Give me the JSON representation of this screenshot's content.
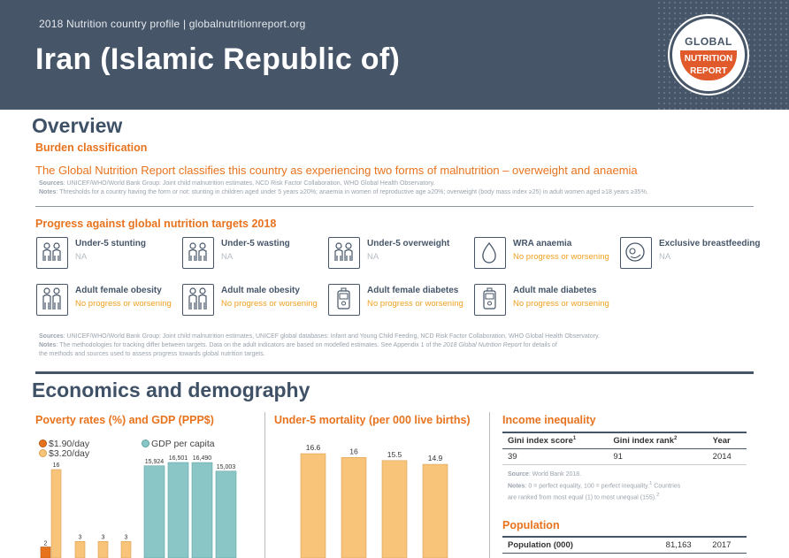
{
  "header": {
    "subtitle": "2018 Nutrition country profile  |  globalnutritionreport.org",
    "country": "Iran (Islamic Republic of)",
    "logo": {
      "line1": "GLOBAL",
      "line2": "NUTRITION",
      "line3": "REPORT"
    },
    "colors": {
      "navy": "#465568",
      "orange": "#e05a2b"
    }
  },
  "overview": {
    "title": "Overview",
    "burden_title": "Burden classification",
    "statement": "The Global Nutrition Report classifies this country as experiencing two forms of malnutrition – overweight and anaemia",
    "sources_label": "Sources",
    "sources_text": ": UNICEF/WHO/World Bank Group: Joint child malnutrition estimates, NCD Risk Factor Collaboration, WHO Global Health Observatory.",
    "notes_label": "Notes",
    "notes_text": ": Thresholds for a country having the form or not: stunting in children aged under 5 years ≥20%; anaemia in women of reproductive age ≥20%; overweight (body mass index ≥25) in adult women aged ≥18 years ≥35%."
  },
  "progress": {
    "title": "Progress against global nutrition targets 2018",
    "targets": [
      {
        "name": "Under-5 stunting",
        "status": "NA",
        "icon": "children-icon"
      },
      {
        "name": "Under-5 wasting",
        "status": "NA",
        "icon": "children-icon"
      },
      {
        "name": "Under-5 overweight",
        "status": "NA",
        "icon": "children-icon"
      },
      {
        "name": "WRA anaemia",
        "status": "No progress or worsening",
        "icon": "blood-drop-icon"
      },
      {
        "name": "Exclusive breastfeeding",
        "status": "NA",
        "icon": "breastfeeding-icon"
      },
      {
        "name": "Adult female obesity",
        "status": "No progress or worsening",
        "icon": "adults-icon"
      },
      {
        "name": "Adult male obesity",
        "status": "No progress or worsening",
        "icon": "adults-icon"
      },
      {
        "name": "Adult female diabetes",
        "status": "No progress or worsening",
        "icon": "glucose-meter-icon"
      },
      {
        "name": "Adult male diabetes",
        "status": "No progress or worsening",
        "icon": "glucose-meter-icon"
      }
    ],
    "sources_label": "Sources",
    "sources_text": ": UNICEF/WHO/World Bank Group: Joint child malnutrition estimates, UNICEF global databases: Infant and Young Child Feeding, NCD Risk Factor Collaboration, WHO Global Health Observatory.",
    "notes_label": "Notes",
    "notes_line1": ": The methodologies for tracking differ between targets. Data on the adult indicators are based on modelled estimates. See Appendix 1 of the ",
    "notes_italic": "2018 Global Nutrition Report",
    "notes_line1_end": " for details of",
    "notes_line2": "the methods and sources used to assess progress towards global nutrition targets.",
    "status_colors": {
      "na": "#b5bcc4",
      "bad": "#f0a020"
    }
  },
  "economics": {
    "title": "Economics and demography",
    "poverty_title": "Poverty rates (%) and GDP (PPP$)",
    "mortality_title": "Under-5 mortality (per 000 live births)",
    "income_title": "Income inequality",
    "income_table": {
      "headers": [
        "Gini index score",
        "Gini index rank",
        "Year"
      ],
      "header_superscripts": [
        "1",
        "2",
        ""
      ],
      "row": [
        "39",
        "91",
        "2014"
      ]
    },
    "income_source_label": "Source",
    "income_source_text": ": World Bank 2018.",
    "income_notes_label": "Notes",
    "income_notes_text": ": 0 = perfect equality, 100 = perfect inequality.",
    "income_notes_sup1": "1",
    "income_notes_text2": " Countries",
    "income_notes_line2": "are ranked from most equal (1) to most unequal (155).",
    "income_notes_sup2": "2",
    "population_title": "Population",
    "population_row": [
      "Population (000)",
      "81,163",
      "2017"
    ]
  },
  "chart_data": [
    {
      "type": "bar",
      "title": "Poverty rates (%) and GDP (PPP$)",
      "series": [
        {
          "name": "$1.90/day",
          "color": "#e8731e",
          "values": [
            2
          ]
        },
        {
          "name": "$3.20/day",
          "color": "#f8c47a",
          "values": [
            16,
            3,
            3,
            3
          ]
        },
        {
          "name": "GDP per capita",
          "color": "#8ac6c6",
          "values": [
            15924,
            16501,
            16490,
            15003
          ]
        }
      ],
      "labels": {
        "p190": [
          "2"
        ],
        "p320": [
          "16",
          "3",
          "3",
          "3"
        ],
        "gdp": [
          "15,924",
          "16,501",
          "16,490",
          "15,003"
        ]
      }
    },
    {
      "type": "bar",
      "title": "Under-5 mortality (per 000 live births)",
      "series": [
        {
          "name": "",
          "color": "#f8c47a",
          "values": [
            16.6,
            16,
            15.5,
            14.9
          ]
        }
      ],
      "labels": [
        "16.6",
        "16",
        "15.5",
        "14.9"
      ]
    }
  ]
}
